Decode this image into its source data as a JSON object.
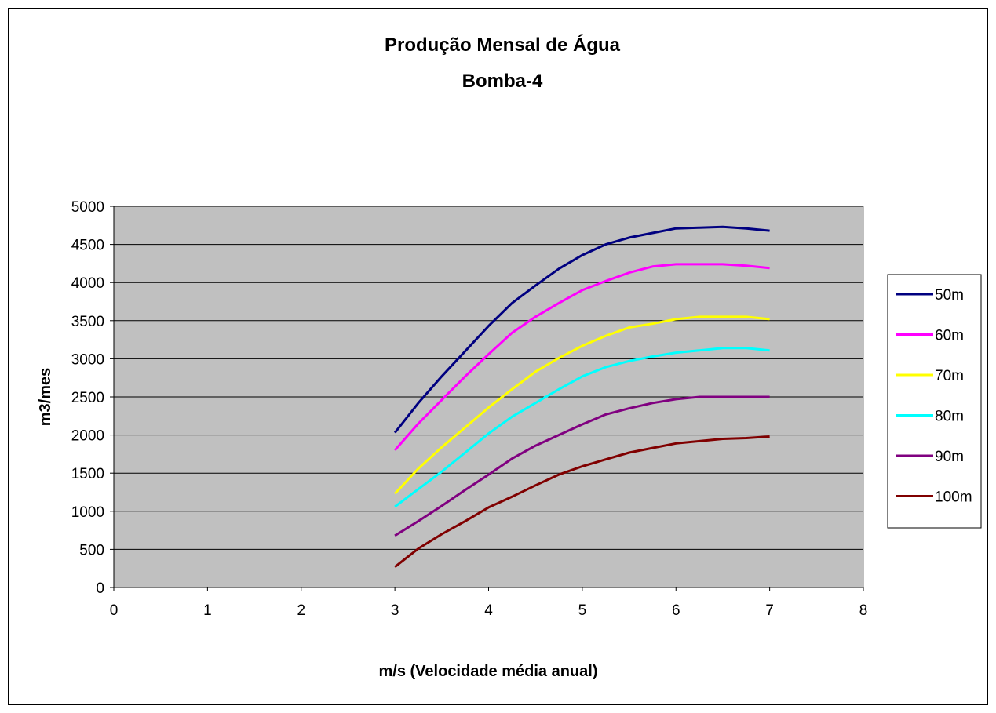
{
  "chart_data": {
    "type": "line",
    "title": "Produção Mensal de Água",
    "subtitle": "Bomba-4",
    "xlabel": "m/s (Velocidade média anual)",
    "ylabel": "m3/mes",
    "xlim": [
      0,
      8
    ],
    "ylim": [
      0,
      5000
    ],
    "x_ticks": [
      0,
      1,
      2,
      3,
      4,
      5,
      6,
      7,
      8
    ],
    "y_ticks": [
      0,
      500,
      1000,
      1500,
      2000,
      2500,
      3000,
      3500,
      4000,
      4500,
      5000
    ],
    "grid": true,
    "legend_position": "right",
    "plot_background": "#c0c0c0",
    "x": [
      3,
      3.25,
      3.5,
      3.75,
      4,
      4.25,
      4.5,
      4.75,
      5,
      5.25,
      5.5,
      5.75,
      6,
      6.25,
      6.5,
      6.75,
      7
    ],
    "series": [
      {
        "name": "50m",
        "color": "#000080",
        "values": [
          2030,
          2420,
          2770,
          3100,
          3430,
          3730,
          3960,
          4180,
          4360,
          4500,
          4590,
          4650,
          4710,
          4720,
          4730,
          4710,
          4680
        ]
      },
      {
        "name": "60m",
        "color": "#ff00ff",
        "values": [
          1800,
          2150,
          2460,
          2770,
          3060,
          3340,
          3550,
          3730,
          3900,
          4020,
          4130,
          4210,
          4240,
          4240,
          4240,
          4220,
          4190
        ]
      },
      {
        "name": "70m",
        "color": "#ffff00",
        "values": [
          1230,
          1560,
          1840,
          2100,
          2360,
          2600,
          2830,
          3010,
          3170,
          3300,
          3410,
          3460,
          3520,
          3550,
          3550,
          3550,
          3520
        ]
      },
      {
        "name": "80m",
        "color": "#00ffff",
        "values": [
          1060,
          1290,
          1520,
          1770,
          2020,
          2240,
          2420,
          2600,
          2770,
          2890,
          2970,
          3030,
          3080,
          3110,
          3140,
          3140,
          3110
        ]
      },
      {
        "name": "90m",
        "color": "#800080",
        "values": [
          680,
          870,
          1070,
          1280,
          1480,
          1690,
          1860,
          2000,
          2140,
          2270,
          2350,
          2420,
          2470,
          2500,
          2500,
          2500,
          2500
        ]
      },
      {
        "name": "100m",
        "color": "#800000",
        "values": [
          270,
          510,
          700,
          870,
          1050,
          1190,
          1340,
          1480,
          1590,
          1680,
          1770,
          1830,
          1890,
          1920,
          1950,
          1960,
          1980
        ]
      }
    ]
  }
}
